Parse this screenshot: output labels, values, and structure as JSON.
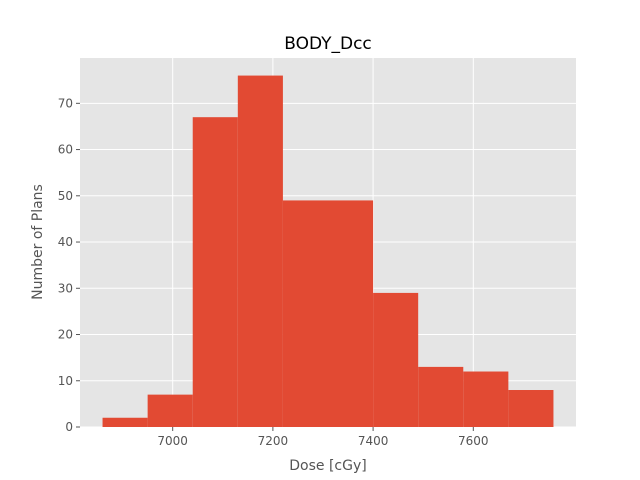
{
  "chart_data": {
    "type": "bar",
    "title": "BODY_Dcc",
    "xlabel": "Dose [cGy]",
    "ylabel": "Number of Plans",
    "bins": [
      {
        "x0": 6860,
        "x1": 6950,
        "count": 2
      },
      {
        "x0": 6950,
        "x1": 7040,
        "count": 7
      },
      {
        "x0": 7040,
        "x1": 7130,
        "count": 67
      },
      {
        "x0": 7130,
        "x1": 7220,
        "count": 76
      },
      {
        "x0": 7220,
        "x1": 7310,
        "count": 49
      },
      {
        "x0": 7310,
        "x1": 7400,
        "count": 49
      },
      {
        "x0": 7400,
        "x1": 7490,
        "count": 29
      },
      {
        "x0": 7490,
        "x1": 7580,
        "count": 13
      },
      {
        "x0": 7580,
        "x1": 7670,
        "count": 12
      },
      {
        "x0": 7670,
        "x1": 7760,
        "count": 8
      }
    ],
    "xlim": [
      6815,
      7805
    ],
    "ylim": [
      0,
      79.8
    ],
    "xticks": [
      7000,
      7200,
      7400,
      7600
    ],
    "yticks": [
      0,
      10,
      20,
      30,
      40,
      50,
      60,
      70
    ],
    "grid": true,
    "colors": {
      "bar": "#e24a33",
      "background": "#e5e5e5",
      "grid": "#ffffff"
    }
  }
}
